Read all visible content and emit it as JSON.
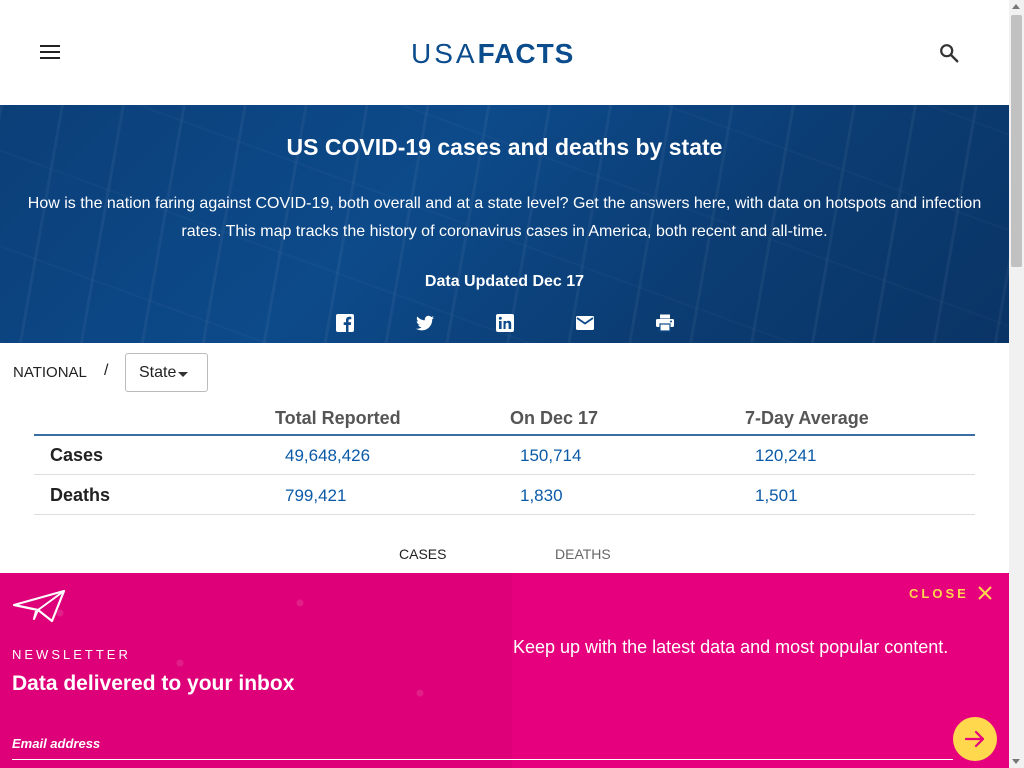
{
  "header": {
    "logo_part1": "USA",
    "logo_part2": "FACTS",
    "menu_icon": "hamburger-menu-icon",
    "search_icon": "search-icon"
  },
  "hero": {
    "title": "US COVID-19 cases and deaths by state",
    "description": "How is the nation faring against COVID-19, both overall and at a state level? Get the answers here, with data on hotspots and infection rates. This map tracks the history of coronavirus cases in America, both recent and all-time.",
    "updated": "Data Updated Dec 17",
    "share_icons": [
      "facebook-icon",
      "twitter-icon",
      "linkedin-icon",
      "email-icon",
      "print-icon"
    ]
  },
  "breadcrumb": {
    "national": "NATIONAL",
    "separator": "/",
    "state_select": "State"
  },
  "table": {
    "headers": [
      "Total Reported",
      "On Dec 17",
      "7-Day Average"
    ],
    "rows": [
      {
        "label": "Cases",
        "values": [
          "49,648,426",
          "150,714",
          "120,241"
        ]
      },
      {
        "label": "Deaths",
        "values": [
          "799,421",
          "1,830",
          "1,501"
        ]
      }
    ]
  },
  "tabs": [
    {
      "label": "CASES",
      "active": true
    },
    {
      "label": "DEATHS",
      "active": false
    }
  ],
  "newsletter": {
    "icon": "paper-plane-icon",
    "close_label": "CLOSE",
    "kicker": "NEWSLETTER",
    "title": "Data delivered to your inbox",
    "tagline": "Keep up with the latest data and most popular content.",
    "email_placeholder": "Email address",
    "submit_icon": "arrow-right-icon"
  },
  "colors": {
    "brand_blue": "#0a4c8c",
    "hero_blue": "#0d4a8a",
    "link_blue": "#0b5aa8",
    "newsletter_pink": "#e6007e",
    "accent_yellow": "#ffd84d"
  }
}
